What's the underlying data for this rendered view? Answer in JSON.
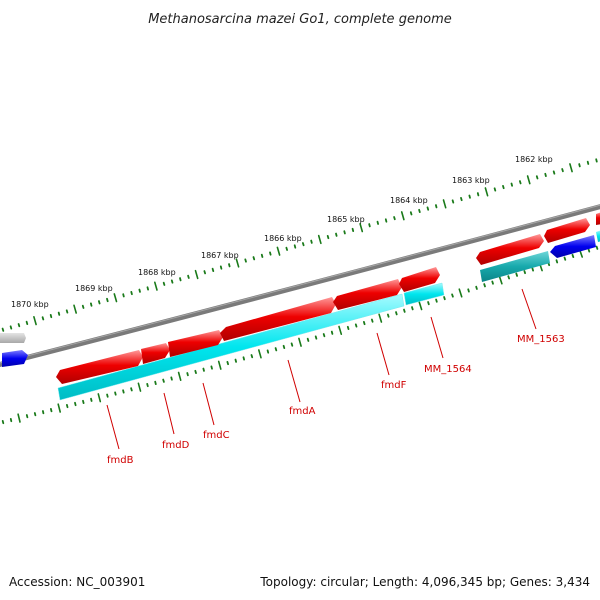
{
  "title": "Methanosarcina mazei Go1, complete genome",
  "footer": {
    "accession": "Accession: NC_003901",
    "summary": "Topology: circular; Length: 4,096,345 bp; Genes: 3,434"
  },
  "ruler": {
    "labels": [
      "1862 kbp",
      "1863 kbp",
      "1864 kbp",
      "1865 kbp",
      "1866 kbp",
      "1867 kbp",
      "1868 kbp",
      "1869 kbp",
      "1870 kbp"
    ]
  },
  "genes": [
    {
      "name": "fmdB"
    },
    {
      "name": "fmdD"
    },
    {
      "name": "fmdC"
    },
    {
      "name": "fmdA"
    },
    {
      "name": "fmdF"
    },
    {
      "name": "MM_1564"
    },
    {
      "name": "MM_1563"
    }
  ],
  "colors": {
    "forward_gene": "#ee0000",
    "cds": "#00e0e8",
    "cds_dark": "#12a8ab",
    "reverse_gene": "#0000ee",
    "backbone": "#808080",
    "ruler": "#1a7a1a",
    "label": "#d00000"
  }
}
